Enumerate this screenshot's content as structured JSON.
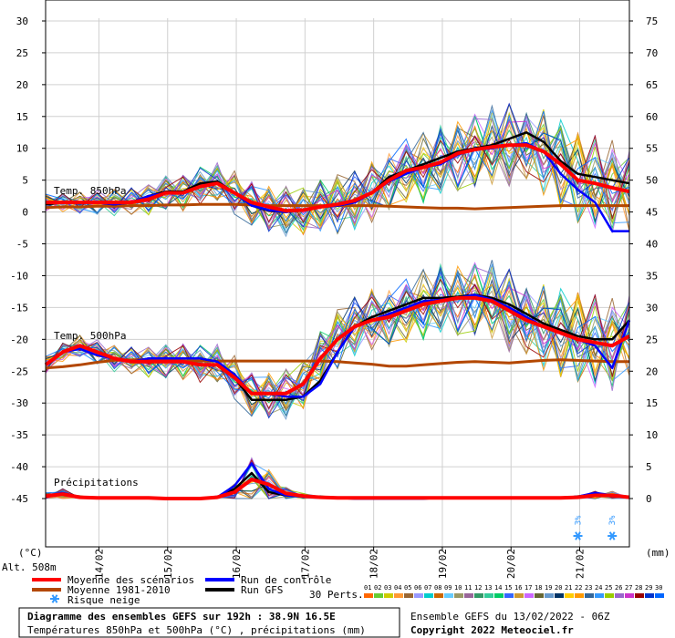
{
  "chart_data": {
    "type": "line",
    "title": "Diagramme des ensembles GEFS sur 192h : 38.9N 16.5E",
    "subtitle": "Températures 850hPa et 500hPa (°C) , précipitations (mm)",
    "left_unit": "(°C)",
    "right_unit": "(mm)",
    "altitude": "Alt. 508m",
    "left_ticks": [
      30,
      25,
      20,
      15,
      10,
      5,
      0,
      -5,
      -10,
      -15,
      -20,
      -25,
      -30,
      -35,
      -40,
      -45
    ],
    "right_ticks": [
      75,
      70,
      65,
      60,
      55,
      50,
      45,
      40,
      35,
      30,
      25,
      20,
      15,
      10,
      5,
      0
    ],
    "x_tick_labels": [
      "14/02",
      "15/02",
      "16/02",
      "17/02",
      "18/02",
      "19/02",
      "20/02",
      "21/02"
    ],
    "panel_labels": {
      "t850": "Temp. 850hPa",
      "t500": "Temp. 500hPa",
      "precip": "Précipitations"
    },
    "hours_step": 6,
    "series": [
      {
        "name": "Moyenne des scénarios",
        "panel": "t850",
        "color": "#ff0000",
        "values": [
          1.5,
          1.5,
          1.5,
          1.5,
          1.5,
          1.5,
          2.0,
          3.0,
          3.0,
          4.0,
          4.5,
          3.0,
          1.5,
          0.8,
          0.2,
          0.3,
          0.8,
          1.2,
          1.8,
          3.0,
          5.0,
          6.5,
          7.0,
          7.8,
          9.2,
          9.8,
          10.2,
          10.5,
          10.5,
          9.5,
          7.5,
          5.0,
          4.5,
          3.8,
          3.2
        ]
      },
      {
        "name": "Moyenne 1981-2010",
        "panel": "t850",
        "color": "#b34700",
        "values": [
          0.7,
          0.8,
          0.8,
          0.9,
          0.9,
          1.0,
          1.0,
          1.1,
          1.1,
          1.2,
          1.2,
          1.2,
          1.1,
          1.0,
          1.0,
          1.0,
          1.0,
          1.0,
          1.0,
          1.0,
          0.9,
          0.8,
          0.7,
          0.6,
          0.6,
          0.5,
          0.6,
          0.7,
          0.8,
          0.9,
          1.0,
          1.0,
          1.0,
          1.0,
          1.0
        ]
      },
      {
        "name": "Run de contrôle",
        "panel": "t850",
        "color": "#0000ff",
        "values": [
          1.5,
          1.5,
          1.5,
          1.5,
          1.2,
          1.5,
          2.5,
          3.0,
          3.0,
          4.0,
          4.5,
          3.0,
          1.0,
          0.3,
          0.0,
          0.3,
          0.8,
          1.0,
          1.5,
          3.0,
          4.8,
          6.0,
          7.0,
          7.5,
          9.0,
          9.8,
          10.0,
          10.5,
          10.8,
          9.5,
          6.0,
          3.5,
          1.5,
          -3.0,
          -3.0
        ]
      },
      {
        "name": "Run GFS",
        "panel": "t850",
        "color": "#000000",
        "values": [
          1.2,
          1.5,
          1.5,
          1.5,
          1.2,
          1.5,
          2.5,
          3.2,
          3.2,
          4.5,
          4.8,
          3.0,
          1.0,
          0.2,
          0.0,
          0.3,
          0.8,
          1.0,
          1.5,
          3.0,
          5.5,
          6.5,
          7.5,
          8.5,
          9.5,
          10.0,
          10.5,
          11.5,
          12.5,
          11.0,
          8.0,
          6.0,
          5.5,
          5.0,
          4.5
        ]
      },
      {
        "name": "Moyenne des scénarios",
        "panel": "t500",
        "color": "#ff0000",
        "values": [
          -24.0,
          -22.0,
          -21.0,
          -22.0,
          -23.0,
          -23.5,
          -23.5,
          -23.5,
          -23.5,
          -24.0,
          -24.0,
          -26.0,
          -28.5,
          -28.5,
          -28.5,
          -27.0,
          -23.0,
          -20.0,
          -18.0,
          -17.0,
          -16.5,
          -15.5,
          -14.5,
          -14.0,
          -13.5,
          -13.5,
          -14.0,
          -15.5,
          -17.0,
          -18.0,
          -19.0,
          -20.0,
          -20.5,
          -21.0,
          -19.5
        ]
      },
      {
        "name": "Moyenne 1981-2010",
        "panel": "t500",
        "color": "#b34700",
        "values": [
          -24.5,
          -24.3,
          -24.0,
          -23.6,
          -23.3,
          -23.2,
          -23.2,
          -23.3,
          -23.4,
          -23.4,
          -23.4,
          -23.4,
          -23.4,
          -23.4,
          -23.4,
          -23.4,
          -23.4,
          -23.5,
          -23.7,
          -23.9,
          -24.2,
          -24.2,
          -24.0,
          -23.8,
          -23.6,
          -23.5,
          -23.6,
          -23.7,
          -23.5,
          -23.3,
          -23.2,
          -23.3,
          -23.4,
          -23.5,
          -23.5
        ]
      },
      {
        "name": "Run de contrôle",
        "panel": "t500",
        "color": "#0000ff",
        "values": [
          -24.0,
          -22.0,
          -21.5,
          -22.5,
          -23.0,
          -23.5,
          -23.0,
          -23.0,
          -23.0,
          -23.0,
          -23.5,
          -25.5,
          -28.5,
          -28.5,
          -29.0,
          -29.0,
          -27.0,
          -22.0,
          -18.0,
          -17.0,
          -16.0,
          -15.0,
          -14.0,
          -13.8,
          -13.5,
          -13.0,
          -13.8,
          -15.0,
          -16.5,
          -18.0,
          -19.0,
          -20.0,
          -21.0,
          -24.5,
          -17.0
        ]
      },
      {
        "name": "Run GFS",
        "panel": "t500",
        "color": "#000000",
        "values": [
          -24.0,
          -22.0,
          -21.0,
          -22.0,
          -23.0,
          -23.5,
          -23.0,
          -23.0,
          -23.0,
          -23.0,
          -23.5,
          -26.0,
          -29.5,
          -29.5,
          -29.5,
          -29.0,
          -26.5,
          -22.0,
          -18.0,
          -16.5,
          -15.5,
          -14.5,
          -13.5,
          -13.5,
          -13.3,
          -13.0,
          -13.5,
          -14.5,
          -16.0,
          -17.5,
          -18.5,
          -19.5,
          -20.0,
          -20.0,
          -17.0
        ]
      },
      {
        "name": "Moyenne des scénarios",
        "panel": "precip",
        "color": "#ff0000",
        "values": [
          0.4,
          0.7,
          0.2,
          0.1,
          0.1,
          0.1,
          0.1,
          0.0,
          0.0,
          0.0,
          0.2,
          1.0,
          3.0,
          2.2,
          0.8,
          0.4,
          0.2,
          0.1,
          0.1,
          0.1,
          0.1,
          0.1,
          0.1,
          0.1,
          0.1,
          0.1,
          0.1,
          0.1,
          0.1,
          0.1,
          0.1,
          0.2,
          0.5,
          0.5,
          0.2
        ]
      },
      {
        "name": "Run de contrôle",
        "panel": "precip",
        "color": "#0000ff",
        "values": [
          0.4,
          0.9,
          0.2,
          0.1,
          0.1,
          0.1,
          0.1,
          0.0,
          0.0,
          0.0,
          0.2,
          2.0,
          5.5,
          1.5,
          0.5,
          0.3,
          0.2,
          0.1,
          0.0,
          0.0,
          0.0,
          0.0,
          0.0,
          0.1,
          0.1,
          0.1,
          0.1,
          0.1,
          0.1,
          0.1,
          0.1,
          0.3,
          0.9,
          0.5,
          0.1
        ]
      },
      {
        "name": "Run GFS",
        "panel": "precip",
        "color": "#000000",
        "values": [
          0.4,
          0.8,
          0.2,
          0.1,
          0.1,
          0.1,
          0.1,
          0.0,
          0.0,
          0.0,
          0.2,
          1.5,
          4.0,
          1.0,
          0.5,
          0.3,
          0.2,
          0.1,
          0.0,
          0.0,
          0.0,
          0.0,
          0.0,
          0.1,
          0.1,
          0.1,
          0.1,
          0.1,
          0.1,
          0.1,
          0.1,
          0.3,
          0.8,
          0.5,
          0.1
        ]
      }
    ],
    "snow_risk": [
      {
        "x_index": 31,
        "label": "3%"
      },
      {
        "x_index": 33,
        "label": "3%"
      }
    ],
    "members": {
      "count": 30,
      "label": "30 Perts.",
      "numbers": [
        "01",
        "02",
        "03",
        "04",
        "05",
        "06",
        "07",
        "08",
        "09",
        "10",
        "11",
        "12",
        "13",
        "14",
        "15",
        "16",
        "17",
        "18",
        "19",
        "20",
        "21",
        "22",
        "23",
        "24",
        "25",
        "26",
        "27",
        "28",
        "29",
        "30"
      ],
      "colors": [
        "#ff6600",
        "#66cc33",
        "#cccc00",
        "#ff9933",
        "#996633",
        "#9999ff",
        "#00cccc",
        "#cc6600",
        "#66ccff",
        "#999966",
        "#996699",
        "#339966",
        "#33cc99",
        "#00cc66",
        "#3366ff",
        "#cc9933",
        "#cc66ff",
        "#666633",
        "#6699cc",
        "#003366",
        "#ffcc00",
        "#ff9900",
        "#336699",
        "#3399ff",
        "#99cc00",
        "#9966cc",
        "#cc33cc",
        "#990000",
        "#0033cc",
        "#0066ff"
      ]
    }
  },
  "legend": {
    "mean_label": "Moyenne des scénarios",
    "clim_label": "Moyenne 1981-2010",
    "snow_label": "Risque neige",
    "control_label": "Run de contrôle",
    "gfs_label": "Run GFS"
  },
  "footer": {
    "title": "Diagramme des ensembles GEFS sur 192h : 38.9N 16.5E",
    "subtitle": "Températures 850hPa et 500hPa (°C) , précipitations (mm)",
    "run": "Ensemble GEFS du 13/02/2022 - 06Z",
    "copyright": "Copyright 2022 Meteociel.fr"
  }
}
